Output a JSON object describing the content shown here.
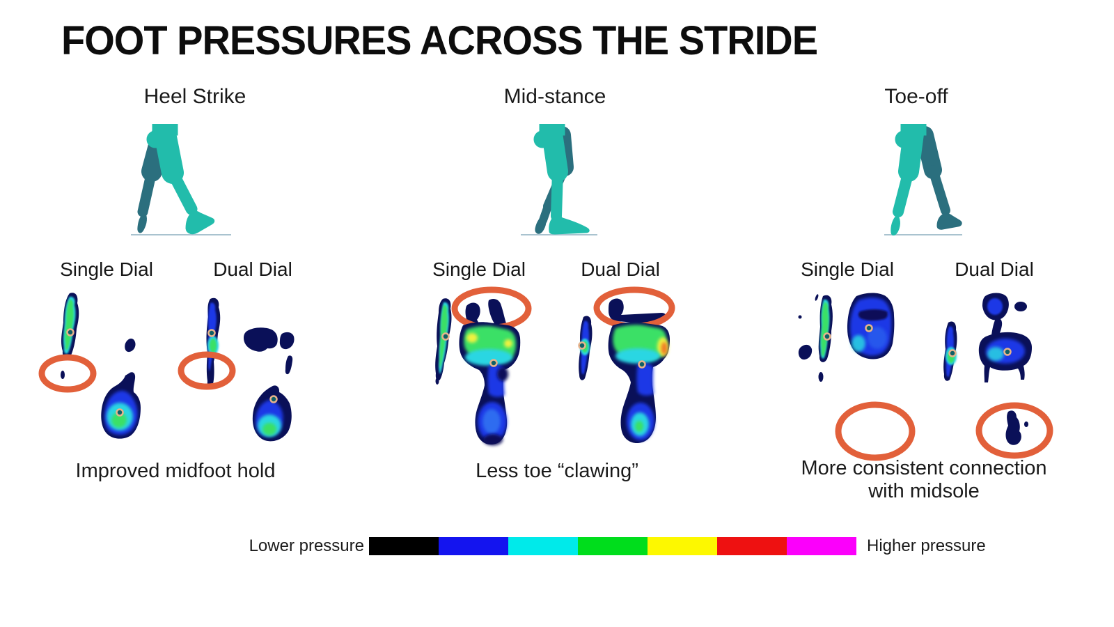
{
  "title": "FOOT PRESSURES ACROSS THE STRIDE",
  "columns": [
    {
      "phase": "Heel Strike",
      "single_label": "Single Dial",
      "dual_label": "Dual Dial",
      "caption": "Improved midfoot hold"
    },
    {
      "phase": "Mid-stance",
      "single_label": "Single Dial",
      "dual_label": "Dual Dial",
      "caption": "Less toe “clawing”"
    },
    {
      "phase": "Toe-off",
      "single_label": "Single Dial",
      "dual_label": "Dual Dial",
      "caption": "More consistent connection",
      "caption2": "with midsole"
    }
  ],
  "legend": {
    "lower_label": "Lower pressure",
    "higher_label": "Higher pressure",
    "colors": [
      "#000000",
      "#1414ef",
      "#00eaea",
      "#00dd1c",
      "#fdf800",
      "#ee1111",
      "#fb00fb"
    ]
  },
  "colors": {
    "highlight_orange": "#E2603A",
    "leg_front_teal": "#22BCAB",
    "leg_back_teal": "#2B6F7E",
    "pressure_navy": "#0a1058",
    "pressure_blue": "#1a38e6",
    "pressure_cyan": "#29d6e2",
    "pressure_green": "#3ae066"
  }
}
